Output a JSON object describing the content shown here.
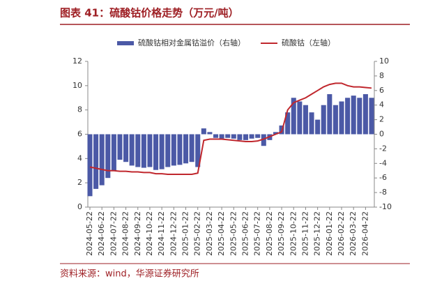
{
  "chart_data": {
    "type": "combo",
    "title": "图表 41：硫酸钴价格走势（万元/吨）",
    "source": "资料来源：wind，华源证券研究所",
    "categories": [
      "2024-05-22",
      null,
      "2024-06-22",
      null,
      "2024-07-22",
      null,
      "2024-08-22",
      null,
      "2024-09-22",
      null,
      "2024-10-22",
      null,
      "2024-11-22",
      null,
      "2024-12-22",
      null,
      "2025-01-22",
      null,
      "2025-02-22",
      null,
      "2025-03-22",
      null,
      "2025-04-22",
      null,
      "2025-05-22",
      null,
      "2025-06-22",
      null,
      "2025-07-22",
      null,
      "2025-08-22",
      null,
      "2025-09-22",
      null,
      "2025-10-22",
      null,
      "2025-11-22",
      null,
      "2025-12-22",
      null,
      "2026-01-22",
      null,
      "2026-02-22",
      null,
      "2026-03-22",
      null,
      "2026-04-22",
      null
    ],
    "series": [
      {
        "name": "硫酸钴相对金属钴溢价（右轴）",
        "type": "bar",
        "axis": "y2",
        "color": "#4b59a6",
        "values": [
          -8.5,
          -7.5,
          -7.0,
          -6.0,
          -5.0,
          -3.5,
          -3.8,
          -4.3,
          -4.5,
          -4.6,
          -4.5,
          -4.9,
          -4.8,
          -4.5,
          -4.3,
          -4.2,
          -4.0,
          -3.8,
          -4.5,
          0.8,
          0.3,
          -0.5,
          -0.6,
          -0.5,
          -0.6,
          -0.8,
          -0.8,
          -0.6,
          -0.5,
          -1.6,
          -0.8,
          0.3,
          1.2,
          3.0,
          5.0,
          4.5,
          4.0,
          3.0,
          2.0,
          4.0,
          5.5,
          4.0,
          4.5,
          5.0,
          5.3,
          5.0,
          5.5,
          5.0
        ]
      },
      {
        "name": "硫酸钴（左轴）",
        "type": "line",
        "color": "#c0272d",
        "values": [
          3.3,
          3.2,
          3.1,
          3.0,
          3.0,
          2.95,
          2.95,
          2.9,
          2.9,
          2.85,
          2.85,
          2.75,
          2.75,
          2.7,
          2.7,
          2.7,
          2.7,
          2.7,
          2.8,
          5.5,
          5.6,
          5.6,
          5.6,
          5.55,
          5.5,
          5.45,
          5.4,
          5.4,
          5.45,
          5.6,
          5.8,
          6.0,
          6.2,
          8.0,
          8.6,
          8.8,
          9.0,
          9.3,
          9.6,
          9.9,
          10.1,
          10.2,
          10.2,
          10.0,
          9.9,
          9.9,
          9.85,
          9.8
        ]
      }
    ],
    "ylim": [
      0,
      12
    ],
    "yticks": [
      0,
      2,
      4,
      6,
      8,
      10,
      12
    ],
    "y2lim": [
      -10,
      10
    ],
    "y2ticks": [
      -10,
      -8,
      -6,
      -4,
      -2,
      0,
      2,
      4,
      6,
      8,
      10
    ]
  }
}
